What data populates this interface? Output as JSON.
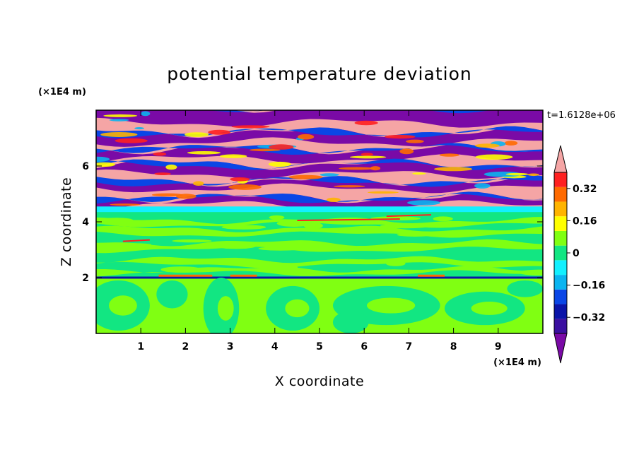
{
  "chart_data": {
    "type": "heatmap",
    "title": "potential temperature deviation",
    "xlabel": "X coordinate",
    "ylabel": "Z coordinate",
    "x_unit": "(×1E4 m)",
    "z_unit": "(×1E4 m)",
    "time_label": "t=1.6128e+06",
    "xlim": [
      0,
      10
    ],
    "ylim": [
      0,
      8
    ],
    "x_ticks": [
      "1",
      "2",
      "3",
      "4",
      "5",
      "6",
      "7",
      "8",
      "9"
    ],
    "y_ticks": [
      "2",
      "4",
      "6"
    ],
    "colorbar": {
      "levels": [
        -0.48,
        -0.4,
        -0.32,
        -0.24,
        -0.16,
        -0.08,
        0,
        0.08,
        0.16,
        0.24,
        0.32,
        0.4,
        0.48
      ],
      "tick_labels": [
        "0.32",
        "0.16",
        "0",
        "−0.16",
        "−0.32"
      ],
      "colors": [
        "#7a0aa6",
        "#3a0fa0",
        "#0a14a8",
        "#0a46e6",
        "#0ab4f0",
        "#12f0ff",
        "#12e682",
        "#80ff12",
        "#ffff00",
        "#ffb400",
        "#ff6a00",
        "#ff2020",
        "#f5a5a5"
      ]
    },
    "regions": [
      {
        "z_range": [
          4.5,
          8
        ],
        "description": "alternating layers",
        "colors": [
          "#f5a5a5",
          "#7a0aa6"
        ]
      },
      {
        "z_range": [
          2.0,
          4.5
        ],
        "description": "mostly",
        "colors": [
          "#12e682",
          "#80ff12"
        ]
      },
      {
        "z_range": [
          0,
          2.0
        ],
        "description": "mixed",
        "colors": [
          "#80ff12",
          "#12e682"
        ]
      }
    ]
  }
}
